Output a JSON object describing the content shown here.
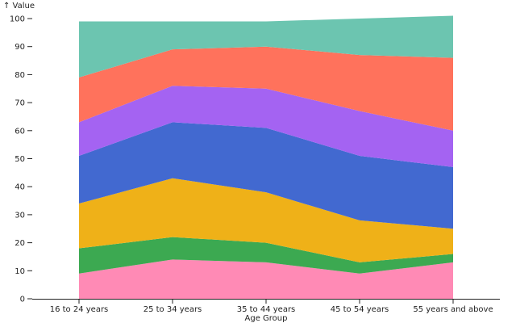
{
  "chart_data": {
    "type": "area",
    "stacked": true,
    "x_label": "Age Group",
    "y_label": "↑ Value",
    "categories": [
      "16 to 24 years",
      "25 to 34 years",
      "35 to 44 years",
      "45 to 54 years",
      "55 years and above"
    ],
    "ylim": [
      0,
      100
    ],
    "y_ticks": [
      0,
      10,
      20,
      30,
      40,
      50,
      60,
      70,
      80,
      90,
      100
    ],
    "grid": false,
    "legend": "none",
    "series": [
      {
        "color": "#ff8ab5",
        "values": [
          9,
          14,
          13,
          9,
          13
        ]
      },
      {
        "color": "#3ca951",
        "values": [
          9,
          8,
          7,
          4,
          3
        ]
      },
      {
        "color": "#efb118",
        "values": [
          16,
          21,
          18,
          15,
          9
        ]
      },
      {
        "color": "#4269d0",
        "values": [
          17,
          20,
          23,
          23,
          22
        ]
      },
      {
        "color": "#a463f2",
        "values": [
          12,
          13,
          14,
          16,
          13
        ]
      },
      {
        "color": "#ff725c",
        "values": [
          16,
          13,
          15,
          20,
          26
        ]
      },
      {
        "color": "#6cc5b0",
        "values": [
          20,
          10,
          9,
          13,
          15
        ]
      }
    ]
  }
}
